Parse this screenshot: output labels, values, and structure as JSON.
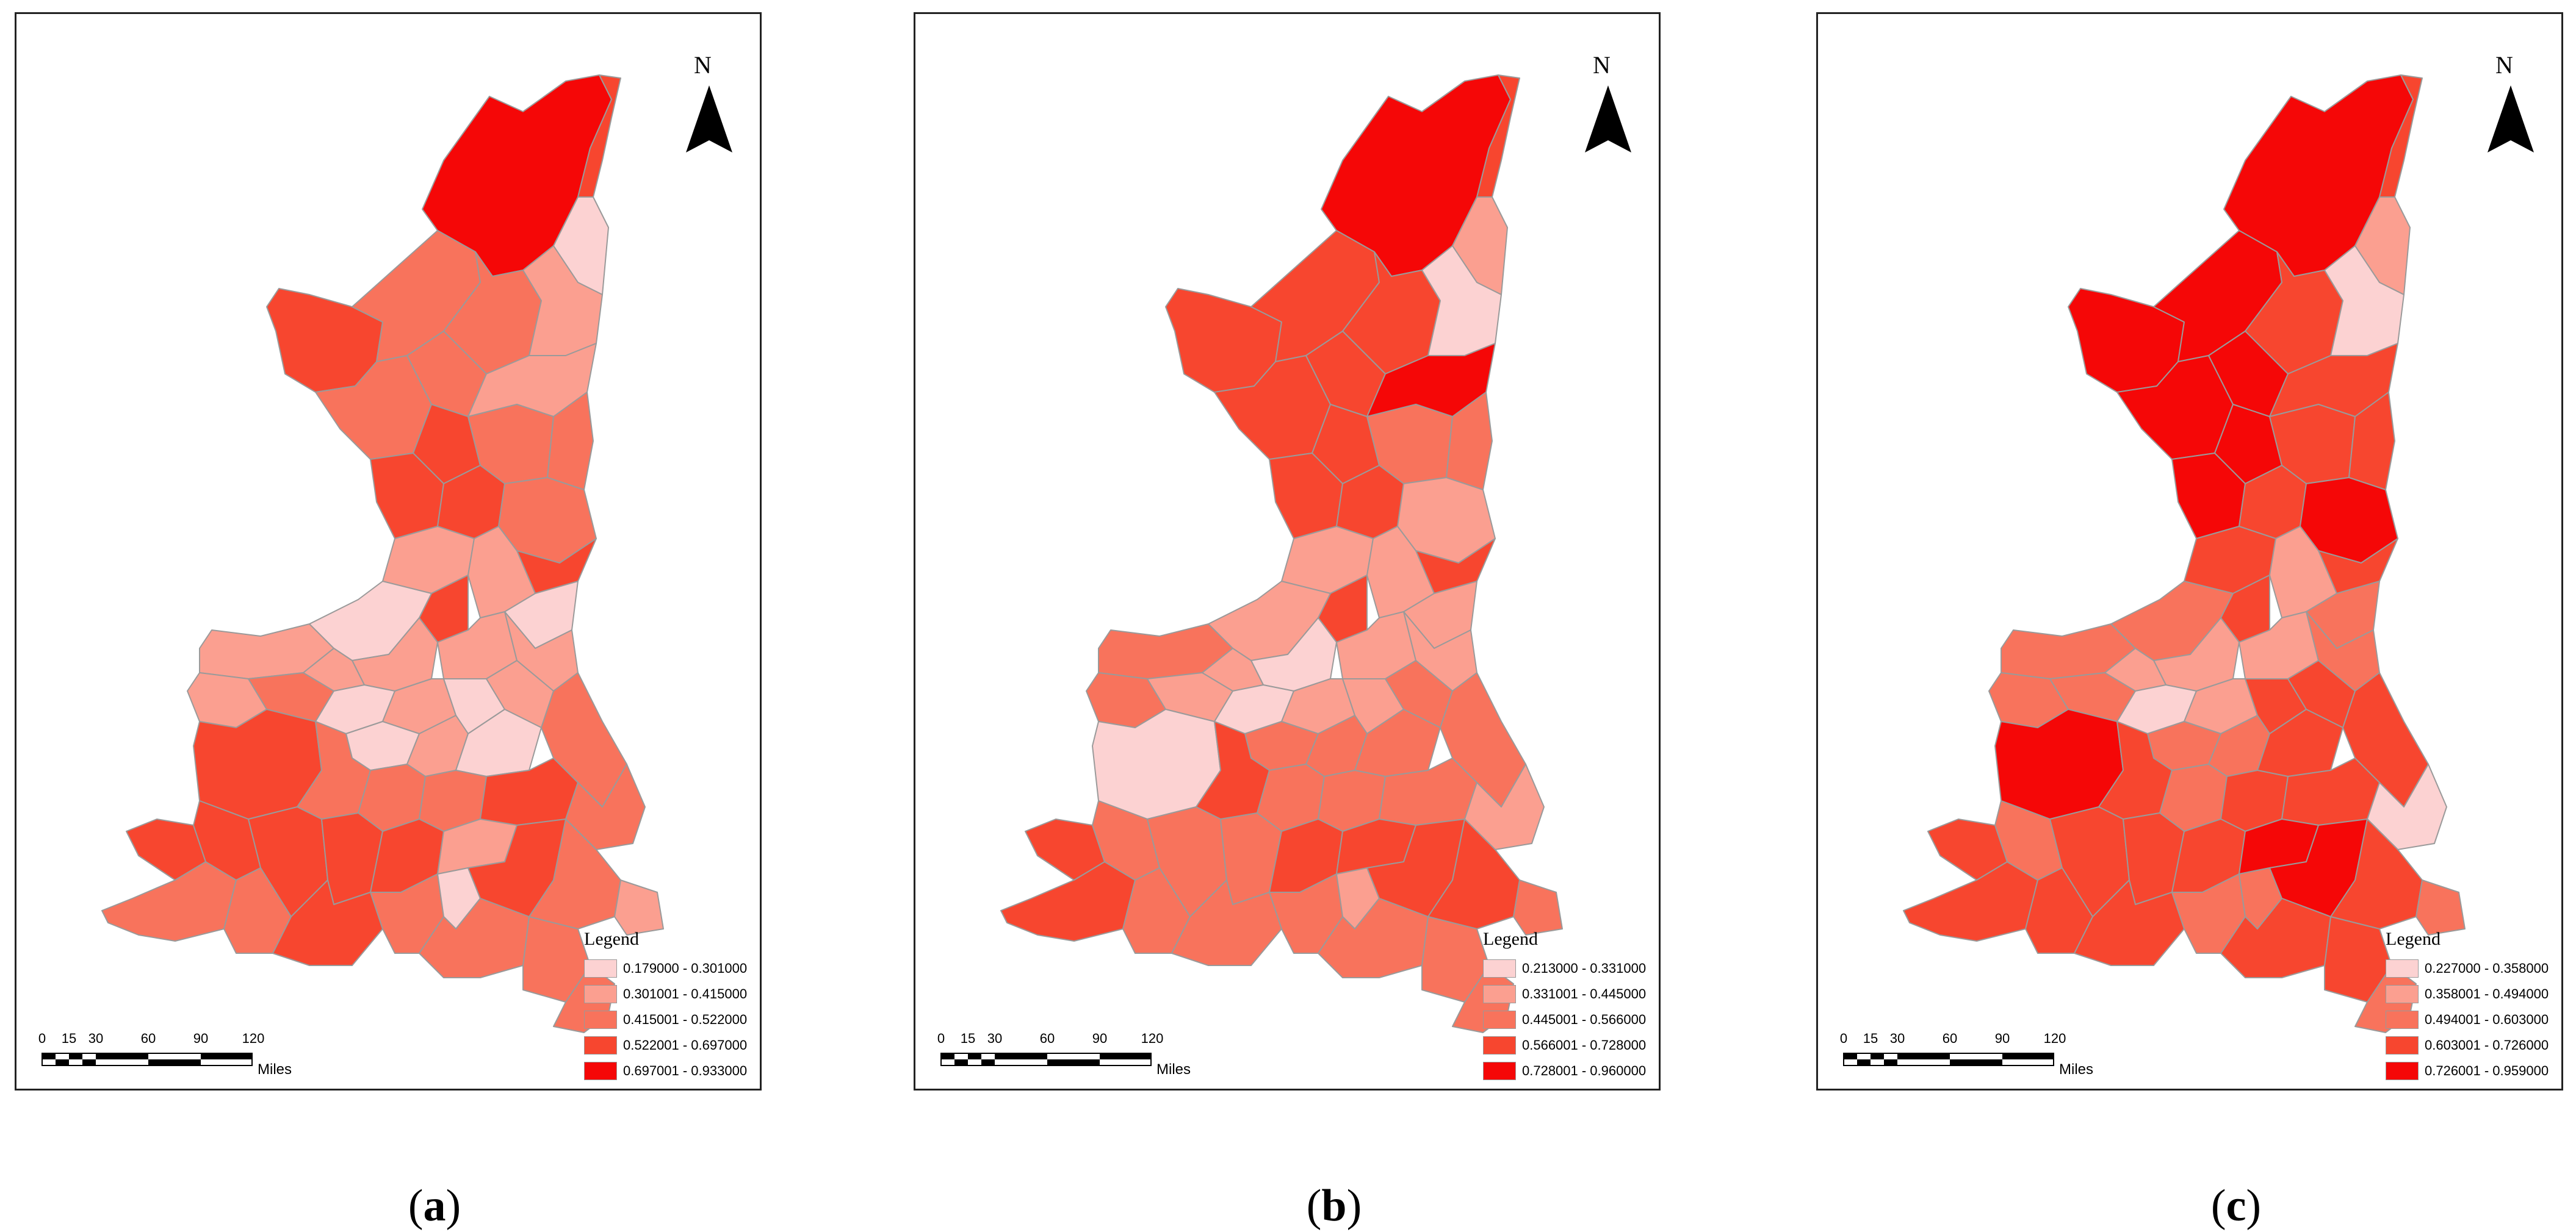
{
  "north_label": "N",
  "legend_title": "Legend",
  "scale": {
    "ticks": [
      "0",
      "15",
      "30",
      "60",
      "90",
      "120"
    ],
    "unit": "Miles"
  },
  "map_colors": [
    "#fcd2d2",
    "#fb9f90",
    "#f8735c",
    "#f7462f",
    "#f50707"
  ],
  "panels": [
    {
      "label": "a",
      "legend": [
        {
          "range": "0.179000 - 0.301000",
          "color": "#fcd2d2"
        },
        {
          "range": "0.301001 - 0.415000",
          "color": "#fb9f90"
        },
        {
          "range": "0.415001 - 0.522000",
          "color": "#f8735c"
        },
        {
          "range": "0.522001 - 0.697000",
          "color": "#f7462f"
        },
        {
          "range": "0.697001 - 0.933000",
          "color": "#f50707"
        }
      ]
    },
    {
      "label": "b",
      "legend": [
        {
          "range": "0.213000 - 0.331000",
          "color": "#fcd2d2"
        },
        {
          "range": "0.331001 - 0.445000",
          "color": "#fb9f90"
        },
        {
          "range": "0.445001 - 0.566000",
          "color": "#f8735c"
        },
        {
          "range": "0.566001 - 0.728000",
          "color": "#f7462f"
        },
        {
          "range": "0.728001 - 0.960000",
          "color": "#f50707"
        }
      ]
    },
    {
      "label": "c",
      "legend": [
        {
          "range": "0.227000 - 0.358000",
          "color": "#fcd2d2"
        },
        {
          "range": "0.358001 - 0.494000",
          "color": "#fb9f90"
        },
        {
          "range": "0.494001 - 0.603000",
          "color": "#f8735c"
        },
        {
          "range": "0.603001 - 0.726000",
          "color": "#f7462f"
        },
        {
          "range": "0.726001 - 0.959000",
          "color": "#f50707"
        }
      ]
    }
  ]
}
